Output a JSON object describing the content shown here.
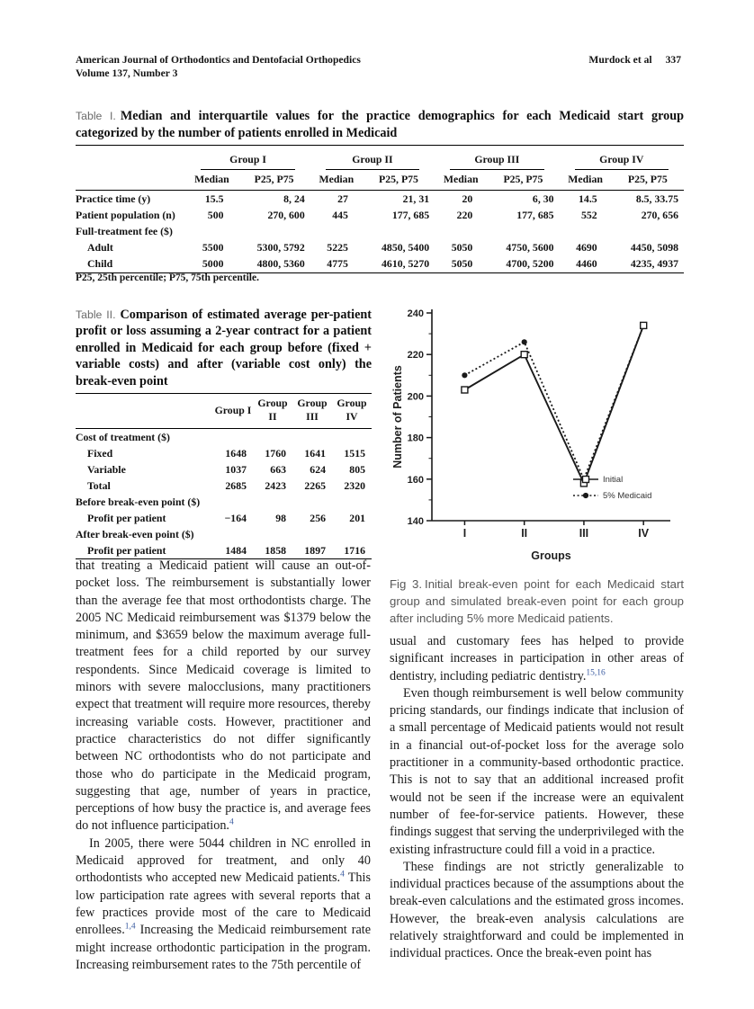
{
  "header": {
    "journal": "American Journal of Orthodontics and Dentofacial Orthopedics",
    "volume_line": "Volume 137, Number 3",
    "authors": "Murdock et al",
    "page_number": "337"
  },
  "table1": {
    "label": "Table I.",
    "caption": "Median and interquartile values for the practice demographics for each Medicaid start group categorized by the number of patients enrolled in Medicaid",
    "groups": [
      "Group I",
      "Group II",
      "Group III",
      "Group IV"
    ],
    "subheaders": [
      "Median",
      "P25, P75"
    ],
    "rows": [
      {
        "label": "Practice time (y)",
        "indent": false,
        "values": [
          "15.5",
          "8, 24",
          "27",
          "21, 31",
          "20",
          "6, 30",
          "14.5",
          "8.5, 33.75"
        ]
      },
      {
        "label": "Patient population (n)",
        "indent": false,
        "values": [
          "500",
          "270, 600",
          "445",
          "177, 685",
          "220",
          "177, 685",
          "552",
          "270, 656"
        ]
      },
      {
        "label": "Full-treatment fee ($)",
        "indent": false,
        "values": []
      },
      {
        "label": "Adult",
        "indent": true,
        "values": [
          "5500",
          "5300, 5792",
          "5225",
          "4850, 5400",
          "5050",
          "4750, 5600",
          "4690",
          "4450, 5098"
        ]
      },
      {
        "label": "Child",
        "indent": true,
        "values": [
          "5000",
          "4800, 5360",
          "4775",
          "4610, 5270",
          "5050",
          "4700, 5200",
          "4460",
          "4235, 4937"
        ]
      }
    ],
    "footnote": "P25, 25th percentile; P75, 75th percentile."
  },
  "table2": {
    "label": "Table II.",
    "caption": "Comparison of estimated average per-patient profit or loss assuming a 2-year contract for a patient enrolled in Medicaid for each group before (fixed + variable costs) and after (variable cost only) the break-even point",
    "columns": [
      "Group I",
      "Group II",
      "Group III",
      "Group IV"
    ],
    "rows": [
      {
        "label": "Cost of treatment ($)",
        "indent": false,
        "values": []
      },
      {
        "label": "Fixed",
        "indent": true,
        "values": [
          "1648",
          "1760",
          "1641",
          "1515"
        ]
      },
      {
        "label": "Variable",
        "indent": true,
        "values": [
          "1037",
          "663",
          "624",
          "805"
        ]
      },
      {
        "label": "Total",
        "indent": true,
        "values": [
          "2685",
          "2423",
          "2265",
          "2320"
        ]
      },
      {
        "label": "Before break-even point ($)",
        "indent": false,
        "values": []
      },
      {
        "label": "Profit per patient",
        "indent": true,
        "values": [
          "−164",
          "98",
          "256",
          "201"
        ]
      },
      {
        "label": "After break-even point ($)",
        "indent": false,
        "values": []
      },
      {
        "label": "Profit per patient",
        "indent": true,
        "values": [
          "1484",
          "1858",
          "1897",
          "1716"
        ]
      }
    ]
  },
  "chart_data": {
    "type": "line",
    "categories": [
      "I",
      "II",
      "III",
      "IV"
    ],
    "series": [
      {
        "name": "Initial",
        "values": [
          203,
          220,
          158,
          234
        ],
        "marker": "open-square",
        "line": "solid"
      },
      {
        "name": "5% Medicaid",
        "values": [
          210,
          226,
          160,
          234
        ],
        "marker": "filled-circle",
        "line": "dotted"
      }
    ],
    "xlabel": "Groups",
    "ylabel": "Number of Patients",
    "ylim": [
      140,
      240
    ],
    "yticks": [
      140,
      160,
      180,
      200,
      220,
      240
    ],
    "grid": false,
    "legend_position": "lower-right"
  },
  "figure": {
    "label": "Fig 3.",
    "caption": "Initial break-even point for each Medicaid start group and simulated break-even point for each group after including 5% more Medicaid patients."
  },
  "body": {
    "left": [
      {
        "indent": false,
        "segments": [
          {
            "t": "that treating a Medicaid patient will cause an out-of-pocket loss. The reimbursement is substantially lower than the average fee that most orthodontists charge. The 2005 NC Medicaid reimbursement was $1379 below the minimum, and $3659 below the maximum average full-treatment fees for a child reported by our survey respondents. Since Medicaid coverage is limited to minors with severe malocclusions, many practitioners expect that treatment will require more resources, thereby increasing variable costs. However, practitioner and practice characteristics do not differ significantly between NC orthodontists who do not participate and those who do participate in the Medicaid program, suggesting that age, number of years in practice, perceptions of how busy the practice is, and average fees do not influence participation."
          },
          {
            "t": "4",
            "sup": true
          }
        ]
      },
      {
        "indent": true,
        "segments": [
          {
            "t": "In 2005, there were 5044 children in NC enrolled in Medicaid approved for treatment, and only 40 orthodontists who accepted new Medicaid patients."
          },
          {
            "t": "4",
            "sup": true
          },
          {
            "t": " This low participation rate agrees with several reports that a few practices provide most of the care to Medicaid enrollees."
          },
          {
            "t": "1,4",
            "sup": true
          },
          {
            "t": " Increasing the Medicaid reimbursement rate might increase orthodontic participation in the program. Increasing reimbursement rates to the 75th percentile of"
          }
        ]
      }
    ],
    "right": [
      {
        "indent": false,
        "segments": [
          {
            "t": "usual and customary fees has helped to provide significant increases in participation in other areas of dentistry, including pediatric dentistry."
          },
          {
            "t": "15,16",
            "sup": true
          }
        ]
      },
      {
        "indent": true,
        "segments": [
          {
            "t": "Even though reimbursement is well below community pricing standards, our findings indicate that inclusion of a small percentage of Medicaid patients would not result in a financial out-of-pocket loss for the average solo practitioner in a community-based orthodontic practice. This is not to say that an additional increased profit would not be seen if the increase were an equivalent number of fee-for-service patients. However, these findings suggest that serving the underprivileged with the existing infrastructure could fill a void in a practice."
          }
        ]
      },
      {
        "indent": true,
        "segments": [
          {
            "t": "These findings are not strictly generalizable to individual practices because of the assumptions about the break-even calculations and the estimated gross incomes. However, the break-even analysis calculations are relatively straightforward and could be implemented in individual practices. Once the break-even point has"
          }
        ]
      }
    ]
  }
}
